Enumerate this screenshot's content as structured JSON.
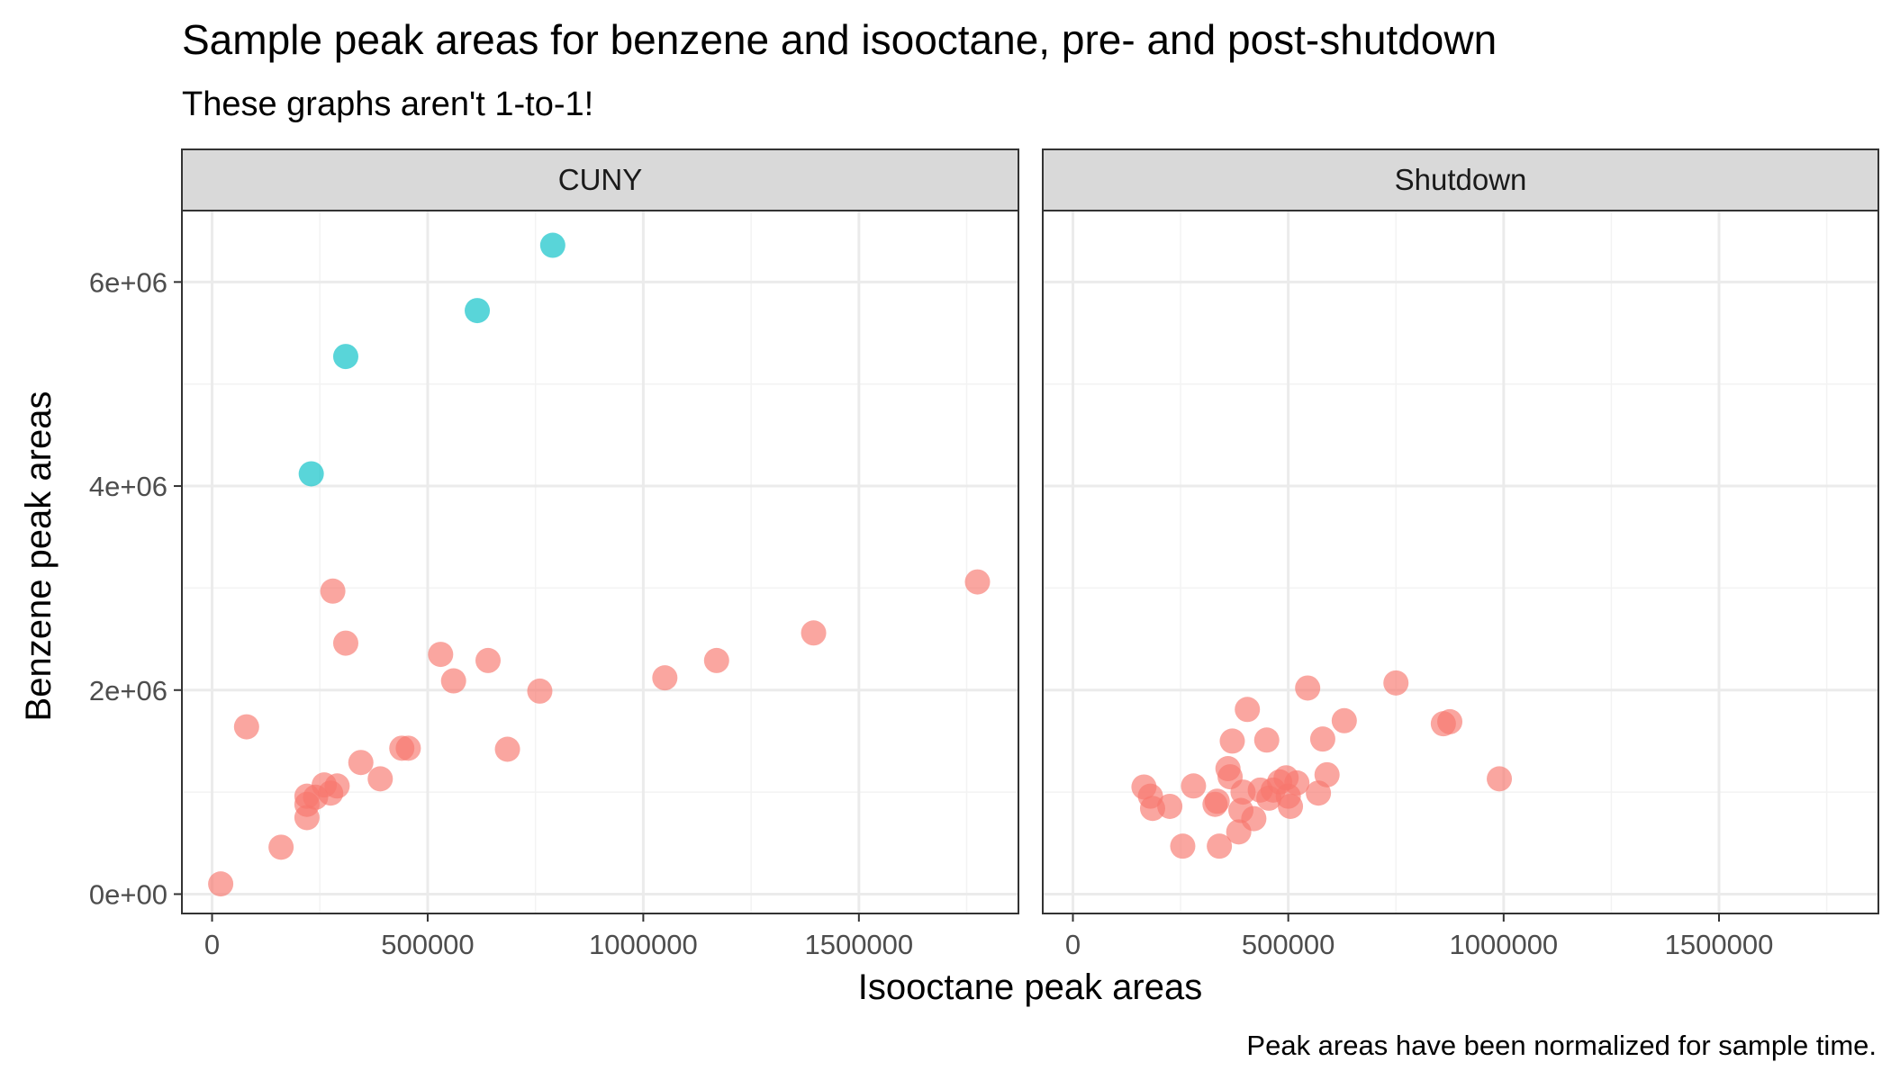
{
  "chart_data": {
    "type": "scatter",
    "title": "Sample peak areas for benzene and isooctane, pre- and post-shutdown",
    "subtitle": "These graphs aren't 1-to-1!",
    "xlabel": "Isooctane peak areas",
    "ylabel": "Benzene peak areas",
    "caption": "Peak areas have been normalized for sample time.",
    "xlim": [
      -70000,
      1870000
    ],
    "ylim": [
      -190000,
      6700000
    ],
    "x_ticks": [
      0,
      500000,
      1000000,
      1500000
    ],
    "x_tick_labels": [
      "0",
      "500000",
      "1000000",
      "1500000"
    ],
    "y_ticks": [
      0,
      2000000,
      4000000,
      6000000
    ],
    "y_tick_labels": [
      "0e+00",
      "2e+06",
      "4e+06",
      "6e+06"
    ],
    "grid": true,
    "legend": "none",
    "colors": {
      "salmon": "#F8766D",
      "teal": "#00BFC4",
      "strip_bg": "#D9D9D9",
      "panel_border": "#333333",
      "grid_major": "#EBEBEB",
      "grid_minor": "#F3F3F3"
    },
    "panels": [
      {
        "label": "CUNY",
        "series": [
          {
            "color": "#F8766D",
            "points": [
              [
                20000,
                100000
              ],
              [
                80000,
                1640000
              ],
              [
                160000,
                460000
              ],
              [
                220000,
                750000
              ],
              [
                220000,
                880000
              ],
              [
                220000,
                960000
              ],
              [
                240000,
                950000
              ],
              [
                260000,
                1070000
              ],
              [
                275000,
                990000
              ],
              [
                290000,
                1060000
              ],
              [
                280000,
                2970000
              ],
              [
                310000,
                2460000
              ],
              [
                345000,
                1290000
              ],
              [
                390000,
                1130000
              ],
              [
                440000,
                1430000
              ],
              [
                455000,
                1430000
              ],
              [
                530000,
                2350000
              ],
              [
                560000,
                2090000
              ],
              [
                640000,
                2290000
              ],
              [
                685000,
                1420000
              ],
              [
                760000,
                1990000
              ],
              [
                1050000,
                2120000
              ],
              [
                1170000,
                2290000
              ],
              [
                1395000,
                2560000
              ],
              [
                1775000,
                3060000
              ]
            ]
          },
          {
            "color": "#00BFC4",
            "points": [
              [
                230000,
                4120000
              ],
              [
                310000,
                5270000
              ],
              [
                615000,
                5720000
              ],
              [
                790000,
                6360000
              ]
            ]
          }
        ]
      },
      {
        "label": "Shutdown",
        "series": [
          {
            "color": "#F8766D",
            "points": [
              [
                165000,
                1050000
              ],
              [
                180000,
                960000
              ],
              [
                185000,
                840000
              ],
              [
                225000,
                860000
              ],
              [
                255000,
                470000
              ],
              [
                280000,
                1060000
              ],
              [
                330000,
                880000
              ],
              [
                335000,
                910000
              ],
              [
                340000,
                470000
              ],
              [
                360000,
                1230000
              ],
              [
                365000,
                1150000
              ],
              [
                370000,
                1500000
              ],
              [
                385000,
                610000
              ],
              [
                390000,
                820000
              ],
              [
                395000,
                1000000
              ],
              [
                405000,
                1810000
              ],
              [
                420000,
                740000
              ],
              [
                435000,
                1020000
              ],
              [
                450000,
                1510000
              ],
              [
                455000,
                940000
              ],
              [
                465000,
                1020000
              ],
              [
                480000,
                1100000
              ],
              [
                495000,
                1140000
              ],
              [
                500000,
                960000
              ],
              [
                505000,
                860000
              ],
              [
                520000,
                1090000
              ],
              [
                545000,
                2020000
              ],
              [
                570000,
                990000
              ],
              [
                580000,
                1520000
              ],
              [
                590000,
                1170000
              ],
              [
                630000,
                1700000
              ],
              [
                750000,
                2070000
              ],
              [
                860000,
                1670000
              ],
              [
                875000,
                1690000
              ],
              [
                990000,
                1130000
              ]
            ]
          }
        ]
      }
    ]
  }
}
